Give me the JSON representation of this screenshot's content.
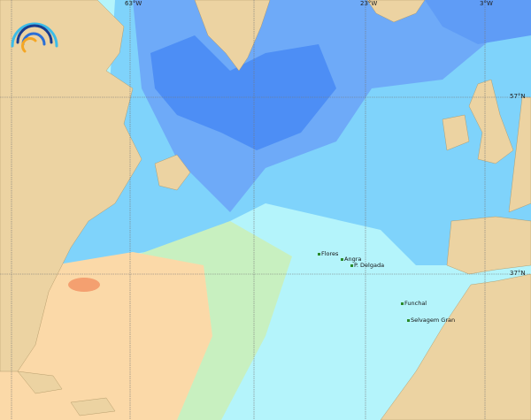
{
  "grid_labels": {
    "lon": [
      "63°W",
      "23°W",
      "3°W"
    ],
    "lat": [
      "57°N",
      "37°N"
    ]
  },
  "places": [
    "Flores",
    "Angra",
    "P. Delgada",
    "Funchal",
    "Selvagem Gran"
  ],
  "colors": {
    "land": "#ecd3a2",
    "deep_blue": "#4d8ef5",
    "mid_blue": "#6eaaf8",
    "light_blue": "#7fd3fb",
    "pale_cyan": "#b6f6fb",
    "green": "#c8f0c0",
    "orange": "#fbd9a8",
    "hot": "#f4a070"
  },
  "logo": "wave-arcs-logo"
}
